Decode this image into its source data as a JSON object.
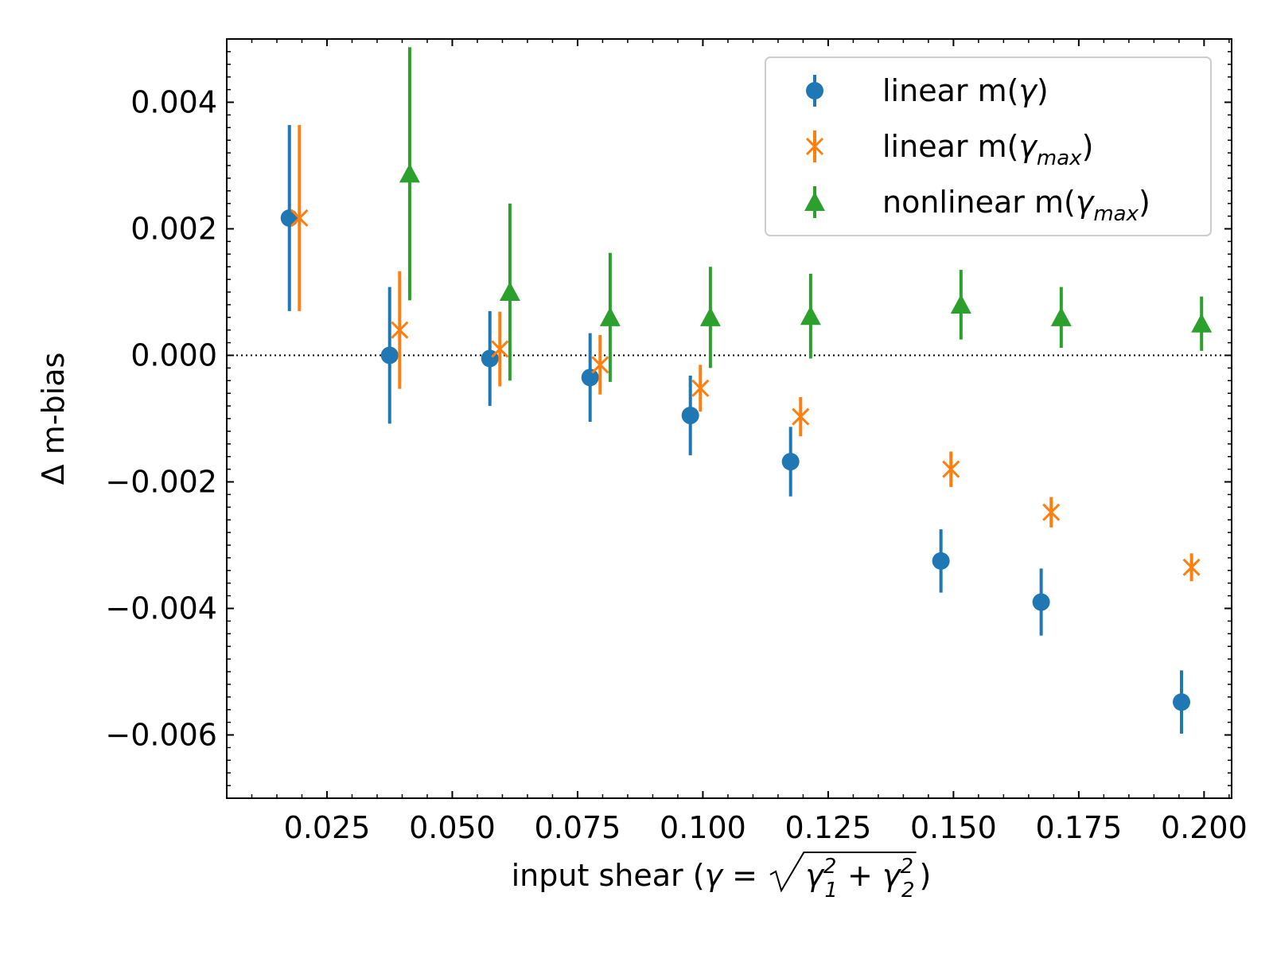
{
  "chart_data": {
    "type": "scatter",
    "title": "",
    "xlabel": {
      "prefix": "input shear (",
      "gamma": "γ",
      "equals": " = ",
      "term1": "γ",
      "term1_sup": "2",
      "term1_sub": "1",
      "plus": " + ",
      "term2": "γ",
      "term2_sup": "2",
      "term2_sub": "2",
      "suffix": ")"
    },
    "ylabel": "Δ m-bias",
    "xlim": [
      0.005,
      0.2055
    ],
    "ylim": [
      -0.007,
      0.005
    ],
    "xticks": [
      0.025,
      0.05,
      0.075,
      0.1,
      0.125,
      0.15,
      0.175,
      0.2
    ],
    "xtick_labels": [
      "0.025",
      "0.050",
      "0.075",
      "0.100",
      "0.125",
      "0.150",
      "0.175",
      "0.200"
    ],
    "yticks": [
      0.004,
      0.002,
      0.0,
      -0.002,
      -0.004,
      -0.006
    ],
    "ytick_labels": [
      "0.004",
      "0.002",
      "0.000",
      "−0.002",
      "−0.004",
      "−0.006"
    ],
    "reference_line": {
      "y": 0.0,
      "style": "dotted",
      "color": "#000000"
    },
    "legend_position": "top-right",
    "series": [
      {
        "name": "linear m(γ)",
        "legend": {
          "main": "linear m(",
          "sym": "γ",
          "sub": "",
          "close": ")"
        },
        "marker": "circle",
        "color": "#1f77b4",
        "x": [
          0.0175,
          0.0375,
          0.0575,
          0.0775,
          0.0975,
          0.1175,
          0.1475,
          0.1675,
          0.1955
        ],
        "y": [
          0.00217,
          0.0,
          -5e-05,
          -0.00035,
          -0.00095,
          -0.00168,
          -0.00325,
          -0.0039,
          -0.00548
        ],
        "err": [
          0.00147,
          0.00108,
          0.00075,
          0.0007,
          0.00063,
          0.00055,
          0.0005,
          0.00053,
          0.0005
        ]
      },
      {
        "name": "linear m(γmax)",
        "legend": {
          "main": "linear m(",
          "sym": "γ",
          "sub": "max",
          "close": ")"
        },
        "marker": "x",
        "color": "#ff7f0e",
        "x": [
          0.0195,
          0.0395,
          0.0595,
          0.0795,
          0.0995,
          0.1195,
          0.1495,
          0.1695,
          0.1975
        ],
        "y": [
          0.00217,
          0.0004,
          0.0001,
          -0.00015,
          -0.00052,
          -0.00097,
          -0.0018,
          -0.00248,
          -0.00335
        ],
        "err": [
          0.00147,
          0.00093,
          0.00059,
          0.00047,
          0.00037,
          0.00031,
          0.00028,
          0.00024,
          0.00022
        ]
      },
      {
        "name": "nonlinear m(γmax)",
        "legend": {
          "main": "nonlinear m(",
          "sym": "γ",
          "sub": "max",
          "close": ")"
        },
        "marker": "triangle",
        "color": "#2ca02c",
        "x": [
          0.0415,
          0.0615,
          0.0815,
          0.1015,
          0.1215,
          0.1515,
          0.1715,
          0.1995
        ],
        "y": [
          0.00287,
          0.001,
          0.0006,
          0.0006,
          0.00062,
          0.0008,
          0.0006,
          0.0005
        ],
        "err": [
          0.002,
          0.0014,
          0.00102,
          0.0008,
          0.00067,
          0.00055,
          0.00048,
          0.00043
        ]
      }
    ]
  }
}
